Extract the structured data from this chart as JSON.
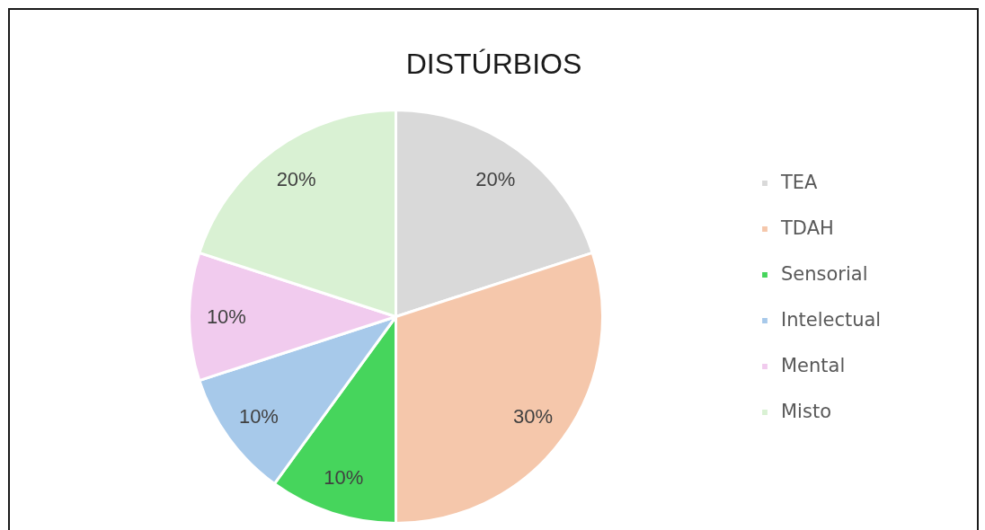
{
  "chart_data": {
    "type": "pie",
    "title": "DISTÚRBIOS",
    "categories": [
      "TEA",
      "TDAH",
      "Sensorial",
      "Intelectual",
      "Mental",
      "Misto"
    ],
    "values": [
      20,
      30,
      10,
      10,
      10,
      20
    ],
    "colors": [
      "#d9d9d9",
      "#f5c7ab",
      "#46d55c",
      "#a7c9ea",
      "#f1cbee",
      "#d9f1d3"
    ],
    "value_labels": [
      "20%",
      "30%",
      "10%",
      "10%",
      "10%",
      "20%"
    ],
    "legend": "right"
  }
}
